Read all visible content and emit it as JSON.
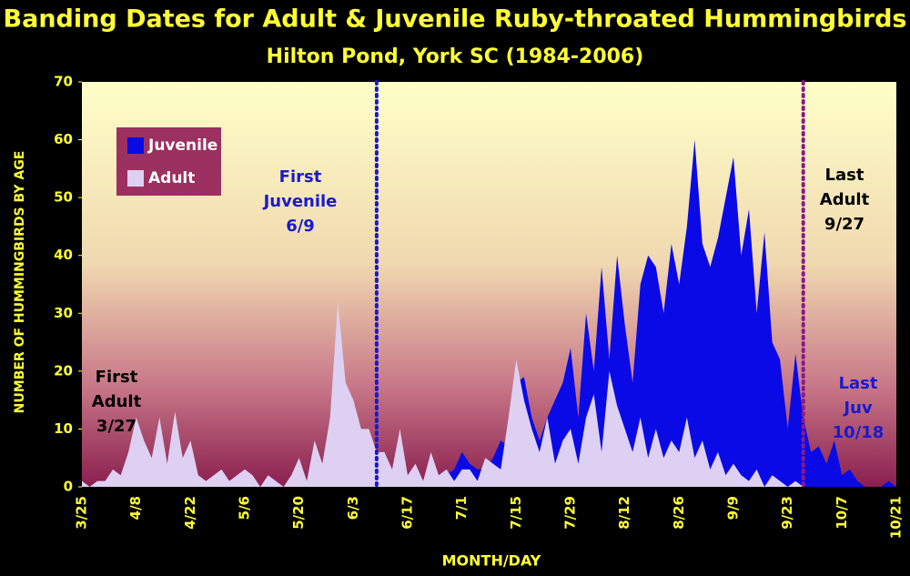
{
  "chart_data": {
    "type": "area",
    "title": "Banding Dates for Adult & Juvenile Ruby-throated Hummingbirds",
    "subtitle": "Hilton Pond, York SC (1984-2006)",
    "x_label": "MONTH/DAY",
    "y_label": "NUMBER OF HUMMINGBIRDS BY AGE",
    "categories": [
      "3/25",
      null,
      null,
      null,
      null,
      null,
      null,
      "4/8",
      null,
      null,
      null,
      null,
      null,
      null,
      "4/22",
      null,
      null,
      null,
      null,
      null,
      null,
      "5/6",
      null,
      null,
      null,
      null,
      null,
      null,
      "5/20",
      null,
      null,
      null,
      null,
      null,
      null,
      "6/3",
      null,
      null,
      null,
      null,
      null,
      null,
      "6/17",
      null,
      null,
      null,
      null,
      null,
      null,
      "7/1",
      null,
      null,
      null,
      null,
      null,
      null,
      "7/15",
      null,
      null,
      null,
      null,
      null,
      null,
      "7/29",
      null,
      null,
      null,
      null,
      null,
      null,
      "8/12",
      null,
      null,
      null,
      null,
      null,
      null,
      "8/26",
      null,
      null,
      null,
      null,
      null,
      null,
      "9/9",
      null,
      null,
      null,
      null,
      null,
      null,
      "9/23",
      null,
      null,
      null,
      null,
      null,
      null,
      "10/7",
      null,
      null,
      null,
      null,
      null,
      null,
      "10/21"
    ],
    "series": [
      {
        "name": "Juvenile",
        "color": "#0a0ae6",
        "values": [
          0,
          0,
          0,
          0,
          0,
          0,
          0,
          0,
          0,
          0,
          0,
          0,
          0,
          0,
          0,
          0,
          0,
          0,
          0,
          0,
          0,
          0,
          0,
          0,
          0,
          0,
          0,
          0,
          0,
          0,
          0,
          0,
          0,
          0,
          0,
          0,
          0,
          0,
          0,
          1,
          0,
          2,
          1,
          1,
          0,
          2,
          1,
          2,
          3,
          6,
          4,
          3,
          3,
          5,
          8,
          7,
          18,
          19,
          12,
          8,
          12,
          15,
          18,
          24,
          12,
          30,
          20,
          38,
          22,
          40,
          28,
          18,
          35,
          40,
          38,
          30,
          42,
          35,
          45,
          60,
          42,
          38,
          43,
          50,
          57,
          40,
          48,
          30,
          44,
          25,
          22,
          10,
          23,
          12,
          6,
          7,
          4,
          8,
          2,
          3,
          1,
          0,
          0,
          0,
          1,
          0
        ]
      },
      {
        "name": "Adult",
        "color": "#ddd0f2",
        "values": [
          1,
          0,
          1,
          1,
          3,
          2,
          6,
          12,
          8,
          5,
          12,
          4,
          13,
          5,
          8,
          2,
          1,
          2,
          3,
          1,
          2,
          3,
          2,
          0,
          2,
          1,
          0,
          2,
          5,
          1,
          8,
          4,
          12,
          32,
          18,
          15,
          10,
          10,
          6,
          6,
          3,
          10,
          2,
          4,
          1,
          6,
          2,
          3,
          1,
          3,
          3,
          1,
          5,
          4,
          3,
          12,
          22,
          15,
          10,
          6,
          12,
          4,
          8,
          10,
          4,
          12,
          16,
          6,
          20,
          14,
          10,
          6,
          12,
          5,
          10,
          5,
          8,
          6,
          12,
          5,
          8,
          3,
          6,
          2,
          4,
          2,
          1,
          3,
          0,
          2,
          1,
          0,
          1,
          0,
          0,
          0,
          0,
          0,
          0,
          0,
          0,
          0,
          0,
          0,
          0,
          0
        ]
      }
    ],
    "ylim": [
      0,
      70
    ],
    "yticks": [
      0,
      10,
      20,
      30,
      40,
      50,
      60,
      70
    ],
    "legend": "upper left",
    "vlines": [
      {
        "date": "6/9",
        "color": "#1a1acc"
      },
      {
        "date": "9/27",
        "color": "#8a1a8a"
      }
    ],
    "annotations": [
      {
        "lines": [
          "First",
          "Adult",
          "3/27"
        ],
        "color": "#000000"
      },
      {
        "lines": [
          "First",
          "Juvenile",
          "6/9"
        ],
        "color": "#1a1acc"
      },
      {
        "lines": [
          "Last",
          "Adult",
          "9/27"
        ],
        "color": "#000000"
      },
      {
        "lines": [
          "Last",
          "Juv",
          "10/18"
        ],
        "color": "#1a1acc"
      }
    ]
  }
}
